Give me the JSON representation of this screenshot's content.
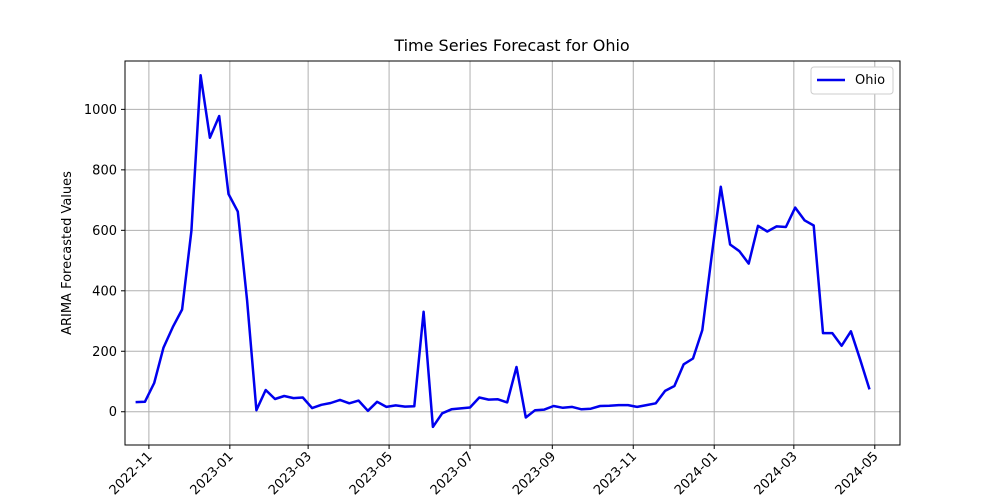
{
  "chart_data": {
    "type": "line",
    "title": "Time Series Forecast for Ohio",
    "xlabel": "",
    "ylabel": "ARIMA Forecasted Values",
    "xlim": [
      "2022-10-14",
      "2024-05-20"
    ],
    "ylim": [
      -110,
      1160
    ],
    "grid": true,
    "legend": {
      "position": "top-right"
    },
    "x_ticks": [
      "2022-11",
      "2023-01",
      "2023-03",
      "2023-05",
      "2023-07",
      "2023-09",
      "2023-11",
      "2024-01",
      "2024-03",
      "2024-05"
    ],
    "x_tick_dates": [
      "2022-11-01",
      "2023-01-01",
      "2023-03-01",
      "2023-05-01",
      "2023-07-01",
      "2023-09-01",
      "2023-11-01",
      "2024-01-01",
      "2024-03-01",
      "2024-05-01"
    ],
    "y_ticks": [
      0,
      200,
      400,
      600,
      800,
      1000
    ],
    "series": [
      {
        "name": "Ohio",
        "color": "#0000ee",
        "x": [
          "2022-10-22",
          "2022-10-29",
          "2022-11-05",
          "2022-11-12",
          "2022-11-19",
          "2022-11-26",
          "2022-12-03",
          "2022-12-10",
          "2022-12-17",
          "2022-12-24",
          "2022-12-31",
          "2023-01-07",
          "2023-01-14",
          "2023-01-21",
          "2023-01-28",
          "2023-02-04",
          "2023-02-11",
          "2023-02-18",
          "2023-02-25",
          "2023-03-04",
          "2023-03-11",
          "2023-03-18",
          "2023-03-25",
          "2023-04-01",
          "2023-04-08",
          "2023-04-15",
          "2023-04-22",
          "2023-04-29",
          "2023-05-06",
          "2023-05-13",
          "2023-05-20",
          "2023-05-27",
          "2023-06-03",
          "2023-06-10",
          "2023-06-17",
          "2023-06-24",
          "2023-07-01",
          "2023-07-08",
          "2023-07-15",
          "2023-07-22",
          "2023-07-29",
          "2023-08-05",
          "2023-08-12",
          "2023-08-19",
          "2023-08-26",
          "2023-09-02",
          "2023-09-09",
          "2023-09-16",
          "2023-09-23",
          "2023-09-30",
          "2023-10-07",
          "2023-10-14",
          "2023-10-21",
          "2023-10-28",
          "2023-11-04",
          "2023-11-11",
          "2023-11-18",
          "2023-11-25",
          "2023-12-02",
          "2023-12-09",
          "2023-12-16",
          "2023-12-23",
          "2023-12-30",
          "2024-01-06",
          "2024-01-13",
          "2024-01-20",
          "2024-01-27",
          "2024-02-03",
          "2024-02-10",
          "2024-02-17",
          "2024-02-24",
          "2024-03-02",
          "2024-03-09",
          "2024-03-16",
          "2024-03-23",
          "2024-03-30",
          "2024-04-06",
          "2024-04-13",
          "2024-04-20",
          "2024-04-27"
        ],
        "y": [
          32,
          33,
          95,
          212,
          280,
          338,
          598,
          1113,
          906,
          978,
          720,
          662,
          368,
          5,
          72,
          42,
          52,
          45,
          47,
          12,
          23,
          29,
          39,
          28,
          37,
          3,
          33,
          16,
          21,
          17,
          18,
          331,
          -50,
          -5,
          8,
          11,
          14,
          47,
          40,
          41,
          31,
          148,
          -19,
          5,
          7,
          19,
          13,
          16,
          8,
          10,
          19,
          20,
          22,
          22,
          16,
          22,
          28,
          69,
          85,
          157,
          176,
          270,
          513,
          744,
          553,
          531,
          490,
          615,
          596,
          613,
          611,
          675,
          633,
          616,
          260,
          260,
          218,
          266,
          172,
          74
        ]
      }
    ]
  }
}
